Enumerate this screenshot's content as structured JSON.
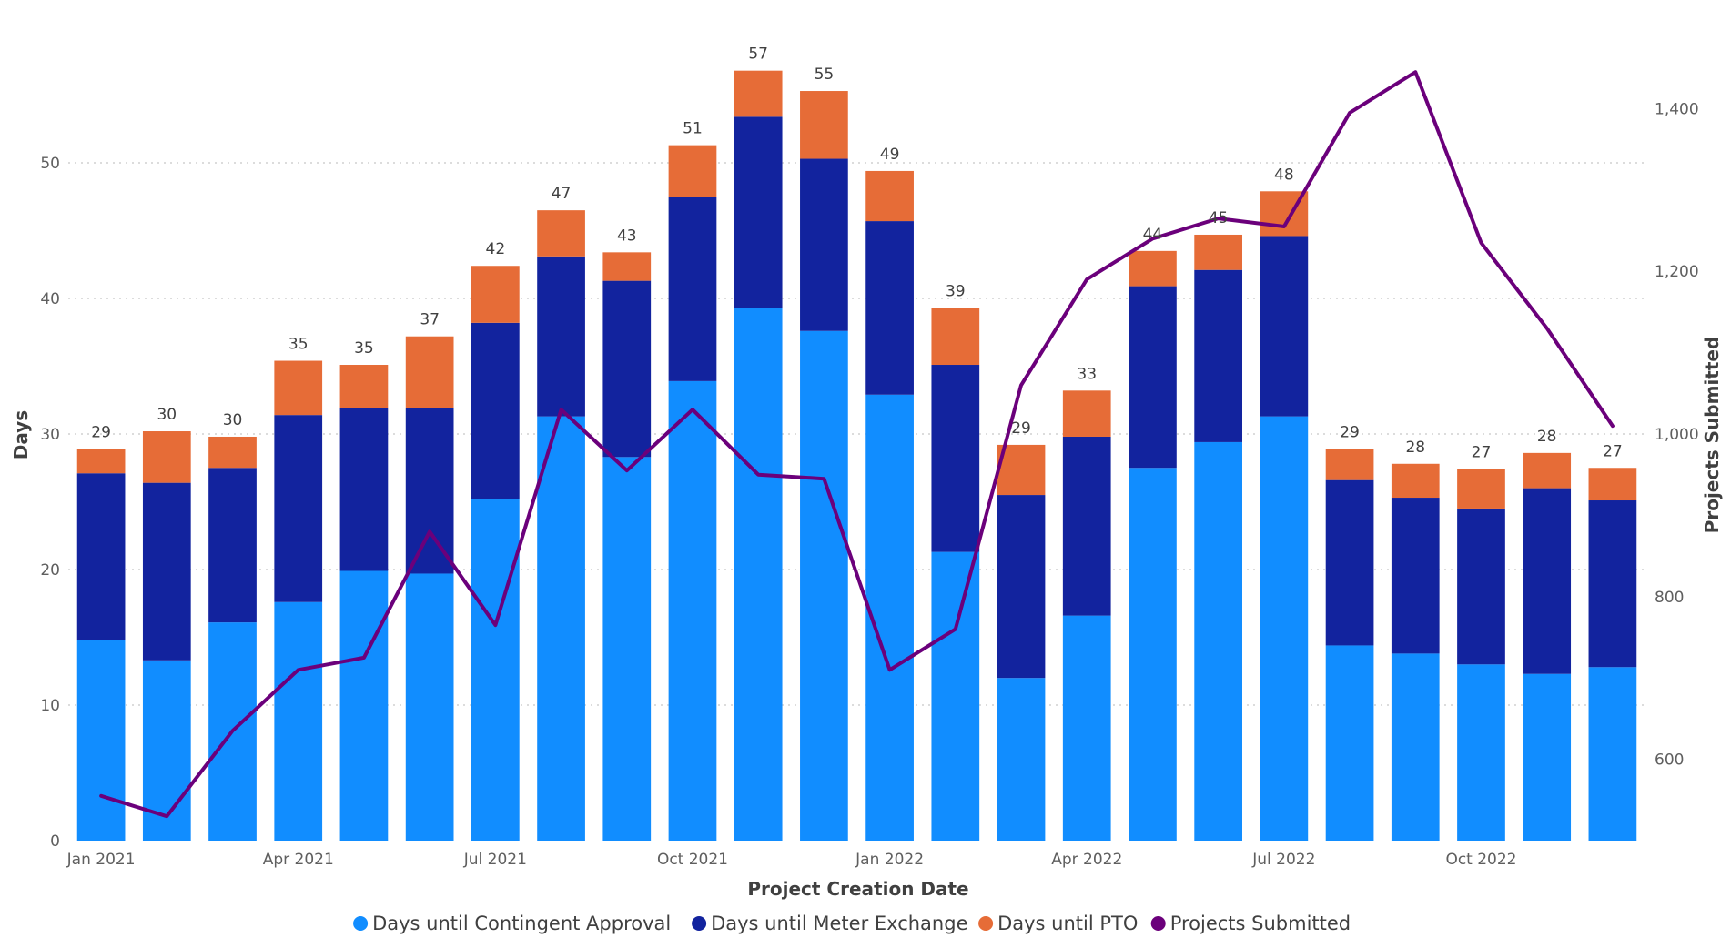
{
  "chart_data": {
    "type": "bar",
    "stacked": true,
    "title": "",
    "xlabel": "Project Creation Date",
    "ylabel": "Days",
    "y2label": "Projects Submitted",
    "ylim": [
      0,
      60
    ],
    "y2lim": [
      500,
      1500
    ],
    "yticks": [
      0,
      10,
      20,
      30,
      40,
      50
    ],
    "y2ticks": [
      "600",
      "800",
      "1,000",
      "1,200",
      "1,400"
    ],
    "y2tick_values": [
      600,
      800,
      1000,
      1200,
      1400
    ],
    "grid": true,
    "legend_position": "bottom",
    "categories": [
      "Jan 2021",
      "Feb 2021",
      "Mar 2021",
      "Apr 2021",
      "May 2021",
      "Jun 2021",
      "Jul 2021",
      "Aug 2021",
      "Sep 2021",
      "Oct 2021",
      "Nov 2021",
      "Dec 2021",
      "Jan 2022",
      "Feb 2022",
      "Mar 2022",
      "Apr 2022",
      "May 2022",
      "Jun 2022",
      "Jul 2022",
      "Aug 2022",
      "Sep 2022",
      "Oct 2022",
      "Nov 2022",
      "Dec 2022"
    ],
    "x_tick_labels": [
      {
        "index": 0,
        "label": "Jan 2021"
      },
      {
        "index": 3,
        "label": "Apr 2021"
      },
      {
        "index": 6,
        "label": "Jul 2021"
      },
      {
        "index": 9,
        "label": "Oct 2021"
      },
      {
        "index": 12,
        "label": "Jan 2022"
      },
      {
        "index": 15,
        "label": "Apr 2022"
      },
      {
        "index": 18,
        "label": "Jul 2022"
      },
      {
        "index": 21,
        "label": "Oct 2022"
      }
    ],
    "series": [
      {
        "name": "Days until Contingent Approval",
        "color": "#118dff",
        "axis": "left",
        "kind": "bar",
        "values": [
          14.8,
          13.3,
          16.1,
          17.6,
          19.9,
          19.7,
          25.2,
          31.3,
          28.3,
          33.9,
          39.3,
          37.6,
          32.9,
          21.3,
          12.0,
          16.6,
          27.5,
          29.4,
          31.3,
          14.4,
          13.8,
          13.0,
          12.3,
          12.8
        ]
      },
      {
        "name": "Days until Meter Exchange",
        "color": "#12239e",
        "axis": "left",
        "kind": "bar",
        "values": [
          12.3,
          13.1,
          11.4,
          13.8,
          12.0,
          12.2,
          13.0,
          11.8,
          13.0,
          13.6,
          14.1,
          12.7,
          12.8,
          13.8,
          13.5,
          13.2,
          13.4,
          12.7,
          13.3,
          12.2,
          11.5,
          11.5,
          13.7,
          12.3
        ]
      },
      {
        "name": "Days until PTO",
        "color": "#e66c37",
        "axis": "left",
        "kind": "bar",
        "values": [
          1.8,
          3.8,
          2.3,
          4.0,
          3.2,
          5.3,
          4.2,
          3.4,
          2.1,
          3.8,
          3.4,
          5.0,
          3.7,
          4.2,
          3.7,
          3.4,
          2.6,
          2.6,
          3.3,
          2.3,
          2.5,
          2.9,
          2.6,
          2.4
        ]
      },
      {
        "name": "Projects Submitted",
        "color": "#6b007b",
        "axis": "right",
        "kind": "line",
        "values": [
          555,
          530,
          635,
          710,
          725,
          880,
          765,
          1030,
          955,
          1030,
          950,
          945,
          710,
          760,
          1060,
          1190,
          1240,
          1265,
          1255,
          1395,
          1445,
          1235,
          1130,
          1010
        ]
      }
    ],
    "data_labels": [
      "29",
      "30",
      "30",
      "35",
      "35",
      "37",
      "42",
      "47",
      "43",
      "51",
      "57",
      "55",
      "49",
      "39",
      "29",
      "33",
      "44",
      "45",
      "48",
      "29",
      "28",
      "27",
      "28",
      "27"
    ]
  }
}
